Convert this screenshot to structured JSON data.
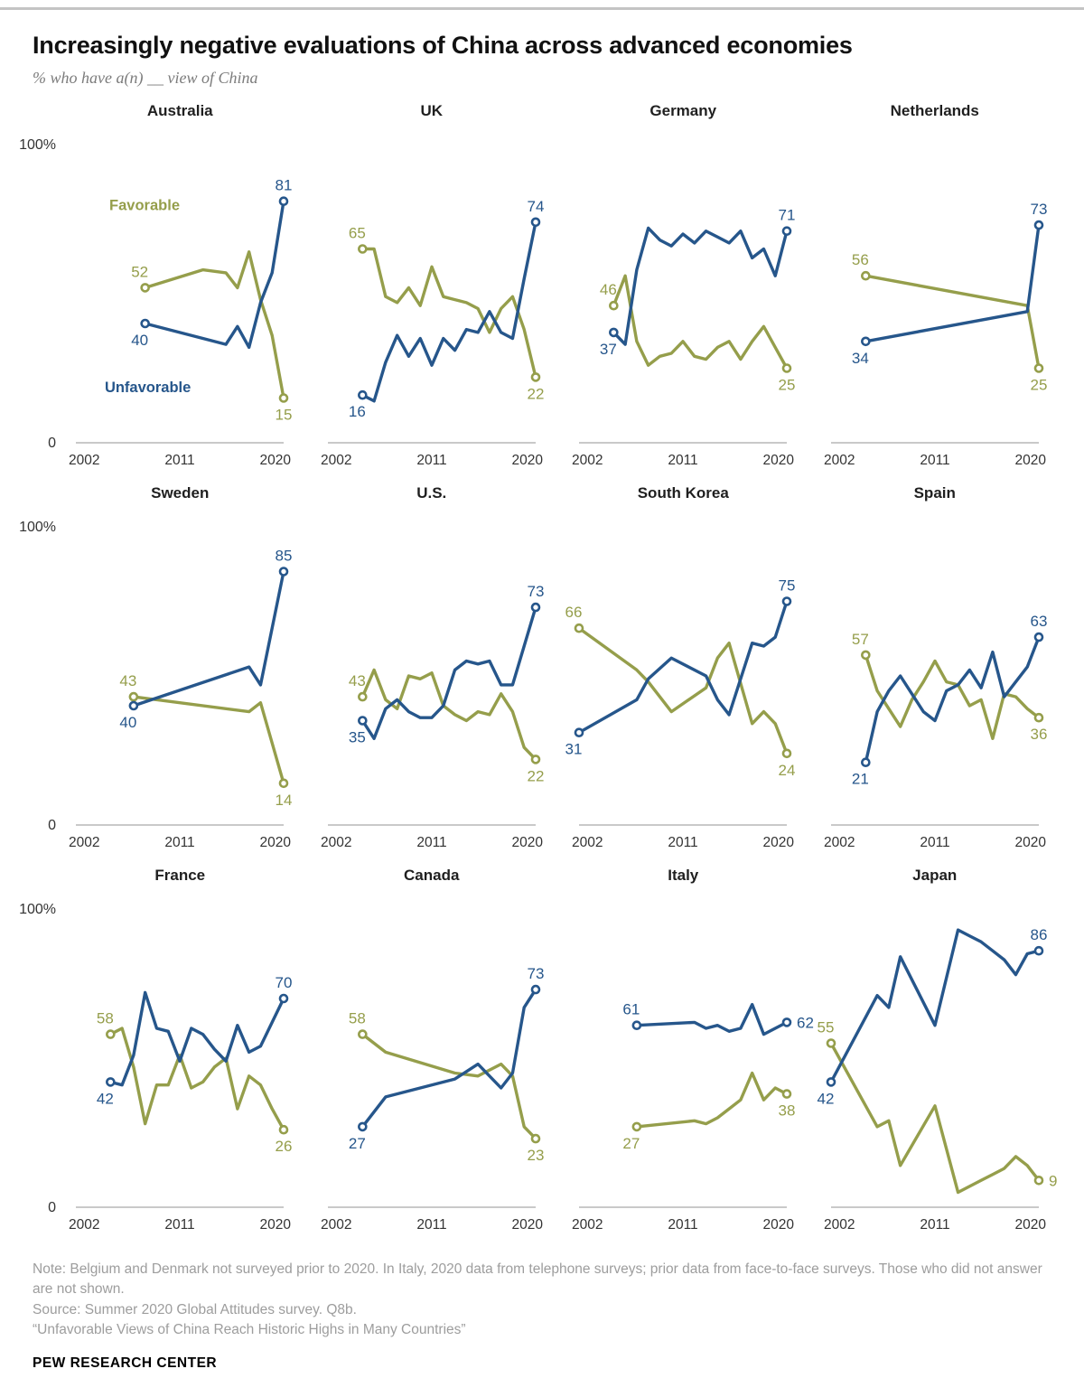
{
  "legend": {
    "favorable_label": "Favorable",
    "unfavorable_label": "Unfavorable"
  },
  "colors": {
    "favorable": "#959e4b",
    "unfavorable": "#26568b",
    "axis_line": "#c9c9c9",
    "tick_text": "#333333"
  },
  "chart_data": {
    "type": "line",
    "title": "Increasingly negative evaluations of China across advanced economies",
    "subtitle": "% who have a(n) __ view of China",
    "axis": {
      "x_min": 2002,
      "x_max": 2020,
      "x_ticks": [
        2002,
        2011,
        2020
      ],
      "ylim": [
        0,
        100
      ],
      "y_top_label": "100%",
      "y_bottom_label": "0",
      "grid": false
    },
    "panels": [
      {
        "title": "Australia",
        "show_y_axis": true,
        "legend": {
          "favorable": {
            "x_year": 2004.9,
            "value": 78
          },
          "unfavorable": {
            "x_year": 2004.5,
            "value": 17
          }
        },
        "series": [
          {
            "name": "Favorable",
            "color": "favorable",
            "x": [
              2008,
              2013,
              2015,
              2016,
              2017,
              2018,
              2019,
              2020
            ],
            "values": [
              52,
              58,
              57,
              52,
              64,
              48,
              36,
              15
            ],
            "start_label_pos": "above",
            "end_label_pos": "below"
          },
          {
            "name": "Unfavorable",
            "color": "unfavorable",
            "x": [
              2008,
              2013,
              2015,
              2016,
              2017,
              2018,
              2019,
              2020
            ],
            "values": [
              40,
              35,
              33,
              39,
              32,
              47,
              57,
              81
            ],
            "start_label_pos": "below",
            "end_label_pos": "above"
          }
        ]
      },
      {
        "title": "UK",
        "show_y_axis": false,
        "series": [
          {
            "name": "Favorable",
            "color": "favorable",
            "x": [
              2005,
              2006,
              2007,
              2008,
              2009,
              2010,
              2011,
              2012,
              2013,
              2014,
              2015,
              2016,
              2017,
              2018,
              2019,
              2020
            ],
            "values": [
              65,
              65,
              49,
              47,
              52,
              46,
              59,
              49,
              48,
              47,
              45,
              37,
              45,
              49,
              38,
              22
            ],
            "start_label_pos": "above",
            "end_label_pos": "below"
          },
          {
            "name": "Unfavorable",
            "color": "unfavorable",
            "x": [
              2005,
              2006,
              2007,
              2008,
              2009,
              2010,
              2011,
              2012,
              2013,
              2014,
              2015,
              2016,
              2017,
              2018,
              2019,
              2020
            ],
            "values": [
              16,
              14,
              27,
              36,
              29,
              35,
              26,
              35,
              31,
              38,
              37,
              44,
              37,
              35,
              55,
              74
            ],
            "start_label_pos": "below",
            "end_label_pos": "above"
          }
        ]
      },
      {
        "title": "Germany",
        "show_y_axis": false,
        "series": [
          {
            "name": "Favorable",
            "color": "favorable",
            "x": [
              2005,
              2006,
              2007,
              2008,
              2009,
              2010,
              2011,
              2012,
              2013,
              2014,
              2015,
              2016,
              2017,
              2018,
              2019,
              2020
            ],
            "values": [
              46,
              56,
              34,
              26,
              29,
              30,
              34,
              29,
              28,
              32,
              34,
              28,
              34,
              39,
              32,
              25
            ],
            "start_label_pos": "above",
            "end_label_pos": "below"
          },
          {
            "name": "Unfavorable",
            "color": "unfavorable",
            "x": [
              2005,
              2006,
              2007,
              2008,
              2009,
              2010,
              2011,
              2012,
              2013,
              2014,
              2015,
              2016,
              2017,
              2018,
              2019,
              2020
            ],
            "values": [
              37,
              33,
              58,
              72,
              68,
              66,
              70,
              67,
              71,
              69,
              67,
              71,
              62,
              65,
              56,
              71
            ],
            "start_label_pos": "below",
            "end_label_pos": "above"
          }
        ]
      },
      {
        "title": "Netherlands",
        "show_y_axis": false,
        "series": [
          {
            "name": "Favorable",
            "color": "favorable",
            "x": [
              2005,
              2019,
              2020
            ],
            "values": [
              56,
              46,
              25
            ],
            "start_label_pos": "above",
            "end_label_pos": "below"
          },
          {
            "name": "Unfavorable",
            "color": "unfavorable",
            "x": [
              2005,
              2019,
              2020
            ],
            "values": [
              34,
              44,
              73
            ],
            "start_label_pos": "below",
            "end_label_pos": "above"
          }
        ]
      },
      {
        "title": "Sweden",
        "show_y_axis": true,
        "series": [
          {
            "name": "Favorable",
            "color": "favorable",
            "x": [
              2007,
              2017,
              2018,
              2020
            ],
            "values": [
              43,
              38,
              41,
              14
            ],
            "start_label_pos": "above",
            "end_label_pos": "below"
          },
          {
            "name": "Unfavorable",
            "color": "unfavorable",
            "x": [
              2007,
              2017,
              2018,
              2020
            ],
            "values": [
              40,
              53,
              47,
              85
            ],
            "start_label_pos": "below",
            "end_label_pos": "above"
          }
        ]
      },
      {
        "title": "U.S.",
        "show_y_axis": false,
        "series": [
          {
            "name": "Favorable",
            "color": "favorable",
            "x": [
              2005,
              2006,
              2007,
              2008,
              2009,
              2010,
              2011,
              2012,
              2013,
              2014,
              2015,
              2016,
              2017,
              2018,
              2019,
              2020
            ],
            "values": [
              43,
              52,
              42,
              39,
              50,
              49,
              51,
              40,
              37,
              35,
              38,
              37,
              44,
              38,
              26,
              22
            ],
            "start_label_pos": "above",
            "end_label_pos": "below"
          },
          {
            "name": "Unfavorable",
            "color": "unfavorable",
            "x": [
              2005,
              2006,
              2007,
              2008,
              2009,
              2010,
              2011,
              2012,
              2013,
              2014,
              2015,
              2016,
              2017,
              2018,
              2019,
              2020
            ],
            "values": [
              35,
              29,
              39,
              42,
              38,
              36,
              36,
              40,
              52,
              55,
              54,
              55,
              47,
              47,
              60,
              73
            ],
            "start_label_pos": "below",
            "end_label_pos": "above"
          }
        ]
      },
      {
        "title": "South Korea",
        "show_y_axis": false,
        "series": [
          {
            "name": "Favorable",
            "color": "favorable",
            "x": [
              2002,
              2007,
              2008,
              2010,
              2013,
              2014,
              2015,
              2017,
              2018,
              2019,
              2020
            ],
            "values": [
              66,
              52,
              48,
              38,
              46,
              56,
              61,
              34,
              38,
              34,
              24
            ],
            "start_label_pos": "above",
            "end_label_pos": "below"
          },
          {
            "name": "Unfavorable",
            "color": "unfavorable",
            "x": [
              2002,
              2007,
              2008,
              2010,
              2013,
              2014,
              2015,
              2017,
              2018,
              2019,
              2020
            ],
            "values": [
              31,
              42,
              49,
              56,
              50,
              42,
              37,
              61,
              60,
              63,
              75
            ],
            "start_label_pos": "below",
            "end_label_pos": "above"
          }
        ]
      },
      {
        "title": "Spain",
        "show_y_axis": false,
        "series": [
          {
            "name": "Favorable",
            "color": "favorable",
            "x": [
              2005,
              2006,
              2007,
              2008,
              2009,
              2010,
              2011,
              2012,
              2013,
              2014,
              2015,
              2016,
              2017,
              2018,
              2019,
              2020
            ],
            "values": [
              57,
              45,
              39,
              33,
              42,
              48,
              55,
              48,
              47,
              40,
              42,
              29,
              44,
              43,
              39,
              36
            ],
            "start_label_pos": "above",
            "end_label_pos": "below"
          },
          {
            "name": "Unfavorable",
            "color": "unfavorable",
            "x": [
              2005,
              2006,
              2007,
              2008,
              2009,
              2010,
              2011,
              2012,
              2013,
              2014,
              2015,
              2016,
              2017,
              2018,
              2019,
              2020
            ],
            "values": [
              21,
              38,
              45,
              50,
              44,
              38,
              35,
              45,
              47,
              52,
              46,
              58,
              43,
              48,
              53,
              63
            ],
            "start_label_pos": "below",
            "end_label_pos": "above"
          }
        ]
      },
      {
        "title": "France",
        "show_y_axis": true,
        "series": [
          {
            "name": "Favorable",
            "color": "favorable",
            "x": [
              2005,
              2006,
              2007,
              2008,
              2009,
              2010,
              2011,
              2012,
              2013,
              2014,
              2015,
              2016,
              2017,
              2018,
              2019,
              2020
            ],
            "values": [
              58,
              60,
              47,
              28,
              41,
              41,
              51,
              40,
              42,
              47,
              50,
              33,
              44,
              41,
              33,
              26
            ],
            "start_label_pos": "above",
            "end_label_pos": "below"
          },
          {
            "name": "Unfavorable",
            "color": "unfavorable",
            "x": [
              2005,
              2006,
              2007,
              2008,
              2009,
              2010,
              2011,
              2012,
              2013,
              2014,
              2015,
              2016,
              2017,
              2018,
              2019,
              2020
            ],
            "values": [
              42,
              41,
              51,
              72,
              60,
              59,
              49,
              60,
              58,
              53,
              49,
              61,
              52,
              54,
              62,
              70
            ],
            "start_label_pos": "below",
            "end_label_pos": "above"
          }
        ]
      },
      {
        "title": "Canada",
        "show_y_axis": false,
        "series": [
          {
            "name": "Favorable",
            "color": "favorable",
            "x": [
              2005,
              2007,
              2013,
              2015,
              2017,
              2018,
              2019,
              2020
            ],
            "values": [
              58,
              52,
              45,
              44,
              48,
              44,
              27,
              23
            ],
            "start_label_pos": "above",
            "end_label_pos": "below"
          },
          {
            "name": "Unfavorable",
            "color": "unfavorable",
            "x": [
              2005,
              2007,
              2013,
              2015,
              2017,
              2018,
              2019,
              2020
            ],
            "values": [
              27,
              37,
              43,
              48,
              40,
              45,
              67,
              73
            ],
            "start_label_pos": "below",
            "end_label_pos": "above"
          }
        ]
      },
      {
        "title": "Italy",
        "show_y_axis": false,
        "series": [
          {
            "name": "Favorable",
            "color": "favorable",
            "x": [
              2007,
              2012,
              2013,
              2014,
              2015,
              2016,
              2017,
              2018,
              2019,
              2020
            ],
            "values": [
              27,
              29,
              28,
              30,
              33,
              36,
              45,
              36,
              40,
              38
            ],
            "start_label_pos": "below",
            "end_label_pos": "below"
          },
          {
            "name": "Unfavorable",
            "color": "unfavorable",
            "x": [
              2007,
              2012,
              2013,
              2014,
              2015,
              2016,
              2017,
              2018,
              2019,
              2020
            ],
            "values": [
              61,
              62,
              60,
              61,
              59,
              60,
              68,
              58,
              60,
              62
            ],
            "start_label_pos": "above",
            "end_label_pos": "right"
          }
        ]
      },
      {
        "title": "Japan",
        "show_y_axis": false,
        "series": [
          {
            "name": "Favorable",
            "color": "favorable",
            "x": [
              2002,
              2006,
              2007,
              2008,
              2011,
              2013,
              2014,
              2015,
              2016,
              2017,
              2018,
              2019,
              2020
            ],
            "values": [
              55,
              27,
              29,
              14,
              34,
              5,
              7,
              9,
              11,
              13,
              17,
              14,
              9
            ],
            "start_label_pos": "above",
            "end_label_pos": "right"
          },
          {
            "name": "Unfavorable",
            "color": "unfavorable",
            "x": [
              2002,
              2006,
              2007,
              2008,
              2011,
              2013,
              2014,
              2015,
              2016,
              2017,
              2018,
              2019,
              2020
            ],
            "values": [
              42,
              71,
              67,
              84,
              61,
              93,
              91,
              89,
              86,
              83,
              78,
              85,
              86
            ],
            "start_label_pos": "below",
            "end_label_pos": "above"
          }
        ]
      }
    ]
  },
  "notes": [
    "Note: Belgium and Denmark not surveyed prior to 2020. In Italy, 2020 data from telephone surveys; prior data from face-to-face surveys. Those who did not answer are not shown.",
    "Source: Summer 2020 Global Attitudes survey. Q8b.",
    "“Unfavorable Views of China Reach Historic Highs in Many Countries”"
  ],
  "footer": {
    "brand": "PEW RESEARCH CENTER"
  }
}
